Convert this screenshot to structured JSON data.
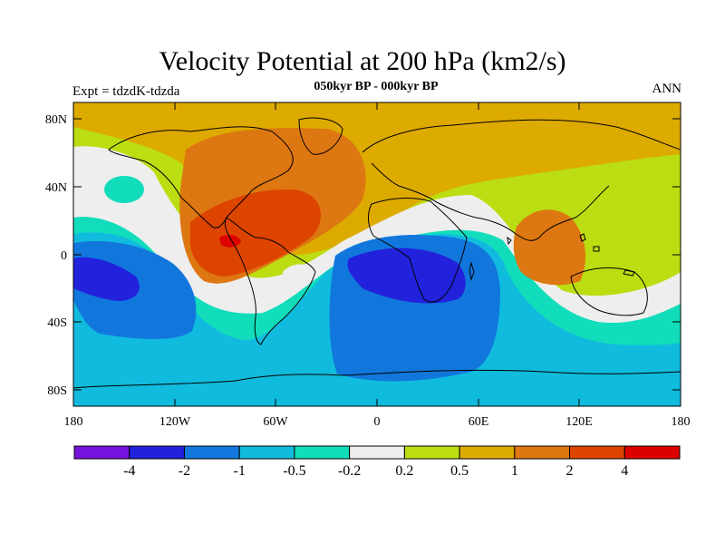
{
  "title": "Velocity Potential at 200 hPa (km2/s)",
  "subtitle": "050kyr BP - 000kyr BP",
  "left_label": "Expt = tdzdK-tdzda",
  "right_label": "ANN",
  "lat_labels": [
    "80N",
    "40N",
    "0",
    "40S",
    "80S"
  ],
  "lon_labels": [
    "180",
    "120W",
    "60W",
    "0",
    "60E",
    "120E",
    "180"
  ],
  "colorbar": {
    "colors": [
      "#7711dd",
      "#2222dd",
      "#1177dd",
      "#11bbdd",
      "#11ddbb",
      "#eeeeee",
      "#bbdd11",
      "#ddaa00",
      "#dd7711",
      "#dd4400",
      "#dd0000"
    ],
    "labels": [
      "-4",
      "-2",
      "-1",
      "-0.5",
      "-0.2",
      "0.2",
      "0.5",
      "1",
      "2",
      "4"
    ]
  }
}
